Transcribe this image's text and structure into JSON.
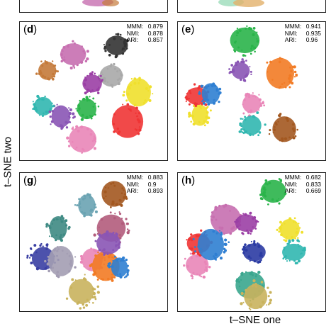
{
  "axes": {
    "ylabel": "t–SNE two",
    "xlabel": "t–SNE one"
  },
  "chart_data": [
    {
      "type": "scatter",
      "panel": "d",
      "metrics": [
        {
          "name": "MMM:",
          "value": "0.879"
        },
        {
          "name": "NMI:",
          "value": "0.878"
        },
        {
          "name": "ARI:",
          "value": "0.857"
        }
      ],
      "clusters": [
        {
          "color": "#c76fb0",
          "x": 3.5,
          "y": 7.9
        },
        {
          "color": "#c47a3a",
          "x": 1.6,
          "y": 6.6
        },
        {
          "color": "#a8a8a8",
          "x": 6.3,
          "y": 6.2
        },
        {
          "color": "#9b3fa5",
          "x": 4.9,
          "y": 5.6
        },
        {
          "color": "#31b7b0",
          "x": 1.3,
          "y": 3.8
        },
        {
          "color": "#8a55b5",
          "x": 2.6,
          "y": 3.0
        },
        {
          "color": "#2ab44a",
          "x": 4.5,
          "y": 3.6
        },
        {
          "color": "#ef3535",
          "x": 7.5,
          "y": 2.6
        },
        {
          "color": "#f0e02c",
          "x": 8.3,
          "y": 4.9
        },
        {
          "color": "#e986b8",
          "x": 4.2,
          "y": 1.2
        },
        {
          "color": "#333333",
          "x": 6.7,
          "y": 8.6
        }
      ]
    },
    {
      "type": "scatter",
      "panel": "e",
      "metrics": [
        {
          "name": "MMM:",
          "value": "0.941"
        },
        {
          "name": "NMI:",
          "value": "0.935"
        },
        {
          "name": "ARI:",
          "value": "0.96"
        }
      ],
      "clusters": [
        {
          "color": "#2ab44a",
          "x": 4.5,
          "y": 9.0
        },
        {
          "color": "#8a55b5",
          "x": 4.2,
          "y": 6.6
        },
        {
          "color": "#f27b25",
          "x": 7.1,
          "y": 6.4
        },
        {
          "color": "#e986b8",
          "x": 5.0,
          "y": 4.0
        },
        {
          "color": "#31b7b0",
          "x": 5.0,
          "y": 2.3
        },
        {
          "color": "#a35820",
          "x": 7.4,
          "y": 2.0
        },
        {
          "color": "#f0e02c",
          "x": 1.2,
          "y": 3.1
        },
        {
          "color": "#ef3535",
          "x": 1.0,
          "y": 4.6
        },
        {
          "color": "#2f7fd2",
          "x": 2.0,
          "y": 4.8
        }
      ]
    },
    {
      "type": "scatter",
      "panel": "g",
      "metrics": [
        {
          "name": "MMM:",
          "value": "0.883"
        },
        {
          "name": "NMI:",
          "value": "0.9"
        },
        {
          "name": "ARI:",
          "value": "0.893"
        }
      ],
      "clusters": [
        {
          "color": "#6aa3b2",
          "x": 4.5,
          "y": 7.9
        },
        {
          "color": "#a35820",
          "x": 6.5,
          "y": 8.8
        },
        {
          "color": "#3e8a83",
          "x": 2.4,
          "y": 6.1
        },
        {
          "color": "#b25c7c",
          "x": 6.3,
          "y": 6.1
        },
        {
          "color": "#3a3fa3",
          "x": 1.3,
          "y": 3.7
        },
        {
          "color": "#a39db3",
          "x": 2.6,
          "y": 3.5
        },
        {
          "color": "#e986b8",
          "x": 4.9,
          "y": 3.6
        },
        {
          "color": "#f27b25",
          "x": 5.9,
          "y": 3.1
        },
        {
          "color": "#2f7fd2",
          "x": 6.9,
          "y": 3.0
        },
        {
          "color": "#c9b35d",
          "x": 4.1,
          "y": 1.1
        },
        {
          "color": "#8a55b5",
          "x": 6.1,
          "y": 4.9
        }
      ]
    },
    {
      "type": "scatter",
      "panel": "h",
      "metrics": [
        {
          "name": "MMM:",
          "value": "0.682"
        },
        {
          "name": "NMI:",
          "value": "0.833"
        },
        {
          "name": "ARI:",
          "value": "0.669"
        }
      ],
      "clusters": [
        {
          "color": "#2ab44a",
          "x": 6.6,
          "y": 9.0
        },
        {
          "color": "#c76fb0",
          "x": 3.1,
          "y": 6.8
        },
        {
          "color": "#9b3fa5",
          "x": 4.6,
          "y": 6.5
        },
        {
          "color": "#f0e02c",
          "x": 7.8,
          "y": 6.0
        },
        {
          "color": "#31b7b0",
          "x": 8.1,
          "y": 4.2
        },
        {
          "color": "#2b3ba3",
          "x": 5.2,
          "y": 4.2
        },
        {
          "color": "#e986b8",
          "x": 1.0,
          "y": 3.2
        },
        {
          "color": "#ef3535",
          "x": 1.1,
          "y": 4.9
        },
        {
          "color": "#2f7fd2",
          "x": 2.0,
          "y": 4.8
        },
        {
          "color": "#3aa68e",
          "x": 4.9,
          "y": 1.6
        },
        {
          "color": "#c9b35d",
          "x": 5.3,
          "y": 0.7
        }
      ]
    }
  ]
}
